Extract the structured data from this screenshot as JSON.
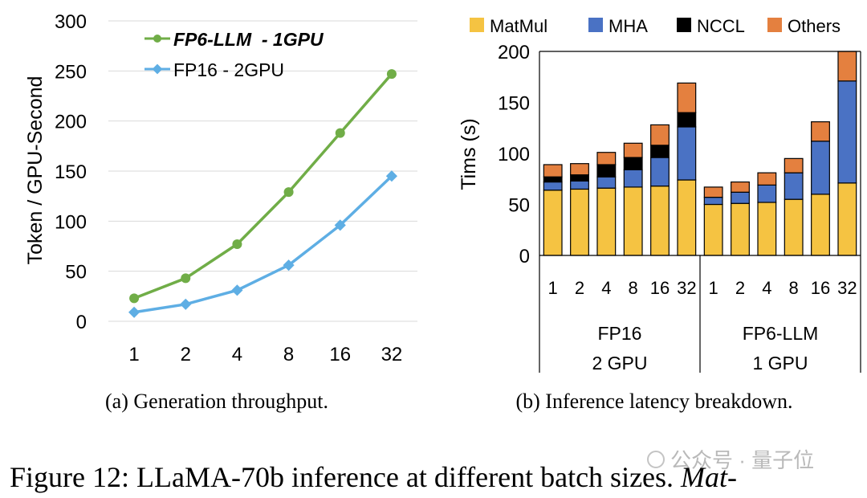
{
  "chart_data": [
    {
      "type": "line",
      "panel": "left",
      "caption": "(a) Generation throughput.",
      "categories": [
        "1",
        "2",
        "4",
        "8",
        "16",
        "32"
      ],
      "ylabel": "Token / GPU-Second",
      "xlabel": "",
      "ylim": [
        0,
        300
      ],
      "yticks": [
        "0",
        "50",
        "100",
        "150",
        "200",
        "250",
        "300"
      ],
      "grid": "horizontal",
      "legend_position": "top-left",
      "series": [
        {
          "name": "FP6-LLM  - 1GPU",
          "color": "#70ad47",
          "marker": "circle",
          "values": [
            23,
            43,
            77,
            129,
            188,
            247
          ]
        },
        {
          "name": "FP16 - 2GPU",
          "color": "#5eaee4",
          "marker": "diamond",
          "values": [
            9,
            17,
            31,
            56,
            96,
            145
          ]
        }
      ]
    },
    {
      "type": "bar",
      "stacked": true,
      "panel": "right",
      "caption": "(b) Inference latency breakdown.",
      "ylabel": "Tims (s)",
      "ylim": [
        0,
        200
      ],
      "yticks": [
        "0",
        "50",
        "100",
        "150",
        "200"
      ],
      "legend_position": "top",
      "legend": [
        "MatMul",
        "MHA",
        "NCCL",
        "Others"
      ],
      "colors": {
        "MatMul": "#f5c342",
        "MHA": "#4a72c4",
        "NCCL": "#000000",
        "Others": "#e4803f"
      },
      "groups": [
        {
          "name": "FP16",
          "sub": "2 GPU",
          "categories": [
            "1",
            "2",
            "4",
            "8",
            "16",
            "32"
          ]
        },
        {
          "name": "FP6-LLM",
          "sub": "1 GPU",
          "categories": [
            "1",
            "2",
            "4",
            "8",
            "16",
            "32"
          ]
        }
      ],
      "series": [
        {
          "name": "MatMul",
          "values": [
            64,
            65,
            66,
            67,
            68,
            74,
            50,
            51,
            52,
            55,
            60,
            71
          ]
        },
        {
          "name": "MHA",
          "values": [
            8,
            8,
            11,
            17,
            28,
            52,
            7,
            11,
            17,
            26,
            52,
            100
          ]
        },
        {
          "name": "NCCL",
          "values": [
            5,
            6,
            12,
            12,
            12,
            14,
            0,
            0,
            0,
            0,
            0,
            0
          ]
        },
        {
          "name": "Others",
          "values": [
            12,
            11,
            12,
            14,
            20,
            29,
            10,
            10,
            12,
            14,
            19,
            29
          ]
        }
      ]
    }
  ],
  "figure_caption_prefix": "Figure 12: LLaMA-70b inference at different batch sizes. ",
  "figure_caption_italic": "Mat-",
  "watermark": "公众号 · 量子位"
}
